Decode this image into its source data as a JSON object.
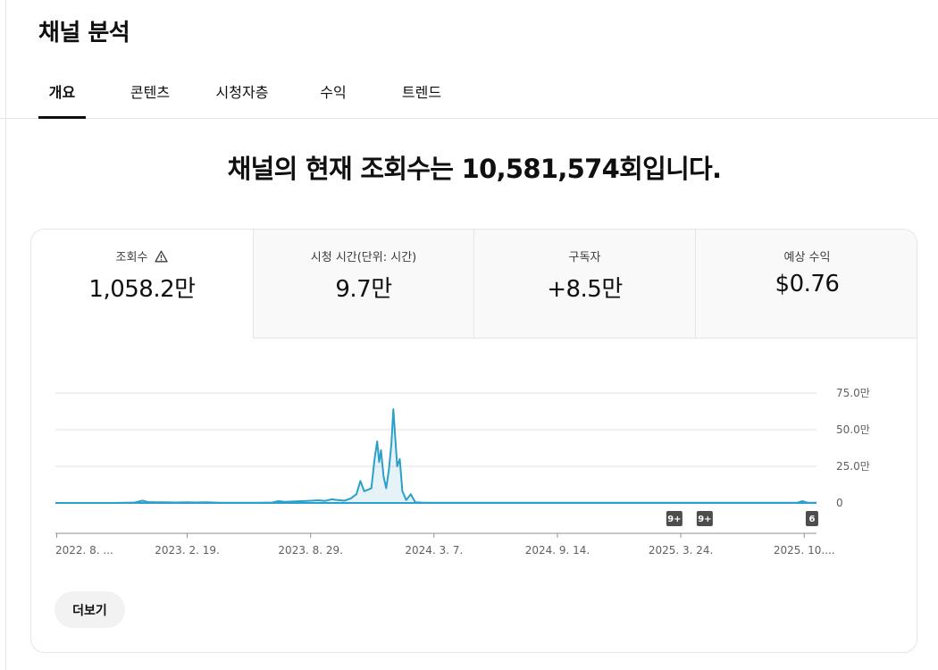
{
  "page": {
    "title": "채널 분석"
  },
  "tabs": [
    {
      "label": "개요",
      "active": true
    },
    {
      "label": "콘텐츠",
      "active": false
    },
    {
      "label": "시청자층",
      "active": false
    },
    {
      "label": "수익",
      "active": false
    },
    {
      "label": "트렌드",
      "active": false
    }
  ],
  "headline": "채널의 현재 조회수는 10,581,574회입니다.",
  "metrics": [
    {
      "label": "조회수",
      "value": "1,058.2만",
      "active": true,
      "icon": "warning-icon"
    },
    {
      "label": "시청 시간(단위: 시간)",
      "value": "9.7만",
      "active": false
    },
    {
      "label": "구독자",
      "value": "+8.5만",
      "active": false
    },
    {
      "label": "예상 수익",
      "value": "$0.76",
      "active": false
    }
  ],
  "chart_data": {
    "type": "area",
    "series": [
      {
        "color": "#2ba0c9",
        "points": [
          [
            "2022-07-30",
            0
          ],
          [
            "2022-08-30",
            0
          ],
          [
            "2022-09-30",
            0
          ],
          [
            "2022-10-30",
            0
          ],
          [
            "2022-11-30",
            0.3
          ],
          [
            "2022-12-12",
            1.6
          ],
          [
            "2022-12-20",
            0.6
          ],
          [
            "2022-12-31",
            0.5
          ],
          [
            "2023-01-15",
            0.4
          ],
          [
            "2023-02-01",
            0.3
          ],
          [
            "2023-02-19",
            0.4
          ],
          [
            "2023-03-05",
            0.3
          ],
          [
            "2023-03-20",
            0.4
          ],
          [
            "2023-04-10",
            0.1
          ],
          [
            "2023-05-10",
            0.1
          ],
          [
            "2023-06-10",
            0.1
          ],
          [
            "2023-07-01",
            0.3
          ],
          [
            "2023-07-10",
            1.2
          ],
          [
            "2023-07-20",
            0.8
          ],
          [
            "2023-08-01",
            1.0
          ],
          [
            "2023-08-15",
            1.2
          ],
          [
            "2023-08-29",
            1.5
          ],
          [
            "2023-09-10",
            1.8
          ],
          [
            "2023-09-20",
            1.4
          ],
          [
            "2023-10-01",
            2.5
          ],
          [
            "2023-10-10",
            2.0
          ],
          [
            "2023-10-20",
            1.5
          ],
          [
            "2023-10-30",
            3.0
          ],
          [
            "2023-11-08",
            6.0
          ],
          [
            "2023-11-14",
            15.0
          ],
          [
            "2023-11-20",
            8.0
          ],
          [
            "2023-12-01",
            10.0
          ],
          [
            "2023-12-06",
            30.0
          ],
          [
            "2023-12-10",
            42.0
          ],
          [
            "2023-12-13",
            28.0
          ],
          [
            "2023-12-16",
            36.0
          ],
          [
            "2023-12-20",
            18.0
          ],
          [
            "2023-12-24",
            10.0
          ],
          [
            "2023-12-28",
            22.0
          ],
          [
            "2024-01-01",
            40.0
          ],
          [
            "2024-01-04",
            64.0
          ],
          [
            "2024-01-07",
            45.0
          ],
          [
            "2024-01-10",
            25.0
          ],
          [
            "2024-01-14",
            30.0
          ],
          [
            "2024-01-18",
            8.0
          ],
          [
            "2024-01-24",
            2.0
          ],
          [
            "2024-01-31",
            6.0
          ],
          [
            "2024-02-07",
            0.5
          ],
          [
            "2024-02-20",
            0.2
          ],
          [
            "2024-03-07",
            0.1
          ],
          [
            "2024-05-01",
            0.1
          ],
          [
            "2024-07-01",
            0.1
          ],
          [
            "2024-09-14",
            0.1
          ],
          [
            "2024-12-01",
            0.1
          ],
          [
            "2025-03-24",
            0.1
          ],
          [
            "2025-06-01",
            0.1
          ],
          [
            "2025-09-20",
            0.1
          ],
          [
            "2025-09-28",
            1.2
          ],
          [
            "2025-10-06",
            0.2
          ],
          [
            "2025-10-20",
            0.1
          ]
        ]
      }
    ],
    "x_range": [
      "2022-07-30",
      "2025-10-20"
    ],
    "ylim": [
      0,
      75
    ],
    "y_ticks": [
      {
        "value": 0,
        "label": "0"
      },
      {
        "value": 25,
        "label": "25.0만"
      },
      {
        "value": 50,
        "label": "50.0만"
      },
      {
        "value": 75,
        "label": "75.0만"
      }
    ],
    "x_ticks": [
      {
        "date": "2022-08-01",
        "label": "2022. 8. ..."
      },
      {
        "date": "2023-02-19",
        "label": "2023. 2. 19."
      },
      {
        "date": "2023-08-29",
        "label": "2023. 8. 29."
      },
      {
        "date": "2024-03-07",
        "label": "2024. 3. 7."
      },
      {
        "date": "2024-09-14",
        "label": "2024. 9. 14."
      },
      {
        "date": "2025-03-24",
        "label": "2025. 3. 24."
      },
      {
        "date": "2025-10-01",
        "label": "2025. 10...."
      }
    ],
    "markers": [
      {
        "date": "2025-03-14",
        "label": "9+"
      },
      {
        "date": "2025-04-30",
        "label": "9+"
      },
      {
        "date": "2025-10-13",
        "label": "6"
      }
    ],
    "grid": true
  },
  "more_button": {
    "label": "더보기"
  }
}
